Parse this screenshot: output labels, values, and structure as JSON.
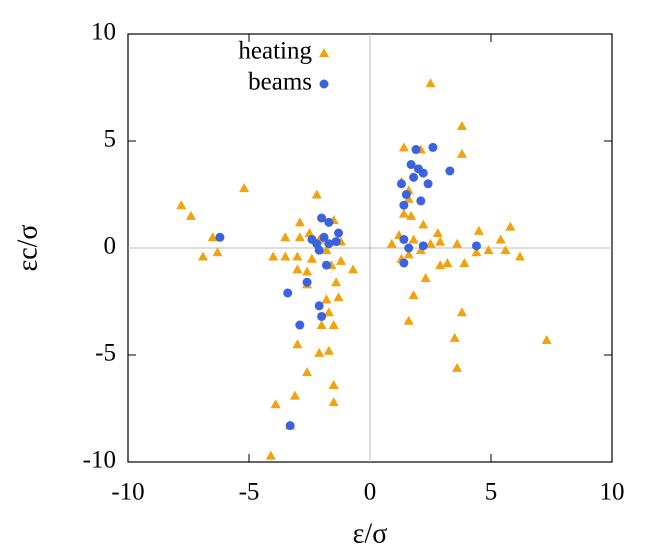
{
  "chart_data": {
    "type": "scatter",
    "x_label": "ε/σ",
    "y_label": "εc/σ",
    "xlim": [
      -10,
      10
    ],
    "ylim": [
      -10,
      10
    ],
    "xticks": [
      -10,
      -5,
      0,
      5,
      10
    ],
    "yticks": [
      -10,
      -5,
      0,
      5,
      10
    ],
    "zero_lines": true,
    "legend": "upper-left",
    "series": [
      {
        "name": "heating",
        "color": "#f2a20c",
        "marker": "triangle",
        "x": [
          2.5,
          3.8,
          3.8,
          1.4,
          2.1,
          -5.2,
          -7.8,
          -7.4,
          -6.5,
          -6.9,
          -6.3,
          -2.2,
          -2.9,
          -3.5,
          -2.9,
          -4.0,
          -3.5,
          -3.0,
          -3.0,
          -2.6,
          -2.6,
          -2.4,
          -1.5,
          -1.2,
          -0.7,
          -1.4,
          -1.3,
          -1.8,
          -1.7,
          -1.5,
          -2.0,
          -3.0,
          -2.1,
          -1.7,
          -2.6,
          -1.5,
          -3.1,
          -1.5,
          -3.9,
          -4.1,
          -3.3,
          7.3,
          3.8,
          3.5,
          3.6,
          1.6,
          1.8,
          2.3,
          2.9,
          3.2,
          3.9,
          4.4,
          4.9,
          5.4,
          5.6,
          5.8,
          6.2,
          4.5,
          3.6,
          2.8,
          2.9,
          2.2,
          1.7,
          1.6,
          1.6,
          1.3,
          0.9,
          1.3,
          1.6,
          1.8,
          1.2,
          1.4,
          2.5,
          2.1,
          -2.1,
          -1.8,
          -2.5,
          -1.2,
          -1.6
        ],
        "y": [
          7.7,
          5.7,
          4.4,
          4.7,
          4.6,
          2.8,
          2.0,
          1.5,
          0.5,
          -0.4,
          -0.2,
          2.5,
          1.2,
          0.5,
          0.5,
          -0.4,
          -0.4,
          -0.4,
          -1.0,
          -1.1,
          -1.7,
          -0.5,
          1.3,
          0.3,
          -1.0,
          -1.6,
          -2.3,
          -2.4,
          -3.0,
          -3.6,
          -3.6,
          -4.5,
          -4.9,
          -4.8,
          -5.8,
          -6.4,
          -6.9,
          -7.2,
          -7.3,
          -9.7,
          -8.3,
          -4.3,
          -3.0,
          -4.2,
          -5.6,
          -3.4,
          -2.2,
          -1.4,
          -0.8,
          -0.7,
          -0.7,
          -0.2,
          -0.1,
          0.4,
          -0.1,
          1.0,
          -0.4,
          0.8,
          0.2,
          0.7,
          0.3,
          1.1,
          1.5,
          2.7,
          2.3,
          3.1,
          0.2,
          -0.5,
          -0.3,
          0.4,
          0.6,
          1.6,
          0.2,
          -0.1,
          0.4,
          -0.1,
          0.7,
          -0.6,
          -0.8
        ]
      },
      {
        "name": "beams",
        "color": "#3a63dd",
        "marker": "circle",
        "x": [
          2.6,
          1.9,
          1.7,
          2.0,
          2.2,
          1.8,
          1.3,
          2.4,
          3.3,
          1.5,
          2.1,
          1.4,
          1.4,
          1.6,
          1.4,
          2.2,
          4.4,
          -6.2,
          -2.0,
          -1.7,
          -1.3,
          -2.4,
          -2.2,
          -2.1,
          -1.9,
          -1.7,
          -1.4,
          -1.8,
          -2.6,
          -3.4,
          -2.1,
          -2.0,
          -2.9,
          -3.3
        ],
        "y": [
          4.7,
          4.6,
          3.9,
          3.7,
          3.5,
          3.3,
          3.0,
          3.0,
          3.6,
          2.5,
          2.2,
          2.0,
          0.4,
          0.0,
          -0.7,
          0.1,
          0.1,
          0.5,
          1.4,
          1.2,
          0.7,
          0.4,
          0.2,
          -0.1,
          0.5,
          0.2,
          0.3,
          -0.8,
          -1.6,
          -2.1,
          -2.7,
          -3.2,
          -3.6,
          -8.3
        ]
      }
    ]
  }
}
